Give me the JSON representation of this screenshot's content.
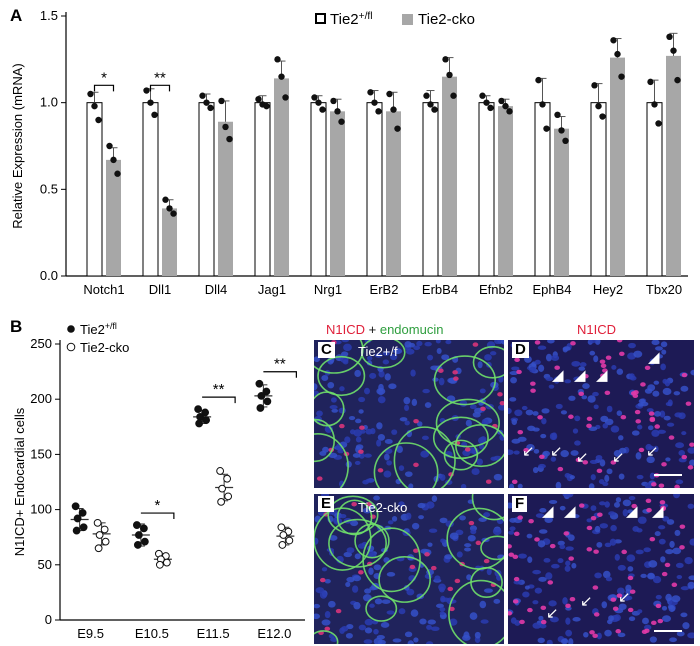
{
  "panelA": {
    "letter": "A",
    "ylabel": "Relative Expression (mRNA)",
    "legend": [
      "Tie2+/fl",
      "Tie2-cko"
    ],
    "ylim": [
      0,
      1.5
    ],
    "yticks": [
      "0.0",
      "0.5",
      "1.0",
      "1.5"
    ]
  },
  "panelB": {
    "letter": "B",
    "ylabel": "N1ICD+ Endocardial cells",
    "legend": [
      "Tie2+/fl",
      "Tie2-cko"
    ],
    "ylim": [
      0,
      250
    ],
    "yticks": [
      "0",
      "50",
      "100",
      "150",
      "200",
      "250"
    ]
  },
  "chart_data": [
    {
      "type": "bar",
      "ylabel": "Relative Expression (mRNA)",
      "ylim": [
        0,
        1.5
      ],
      "categories": [
        "Notch1",
        "Dll1",
        "Dll4",
        "Jag1",
        "Nrg1",
        "ErB2",
        "ErbB4",
        "Efnb2",
        "EphB4",
        "Hey2",
        "Tbx20"
      ],
      "series": [
        {
          "name": "Tie2+/fl",
          "values": [
            1.0,
            1.0,
            1.0,
            1.0,
            1.0,
            1.0,
            1.0,
            1.0,
            1.0,
            1.0,
            1.0
          ],
          "err": [
            0.06,
            0.08,
            0.05,
            0.04,
            0.04,
            0.07,
            0.07,
            0.04,
            0.14,
            0.11,
            0.13
          ],
          "points": [
            [
              1.05,
              0.98,
              0.9
            ],
            [
              1.07,
              1.0,
              0.93
            ],
            [
              1.04,
              1.0,
              0.97
            ],
            [
              1.02,
              0.99,
              0.98
            ],
            [
              1.03,
              1.0,
              0.96
            ],
            [
              1.06,
              1.0,
              0.95
            ],
            [
              1.04,
              0.99,
              0.96
            ],
            [
              1.04,
              1.0,
              0.97
            ],
            [
              1.13,
              0.99,
              0.85
            ],
            [
              1.1,
              0.98,
              0.92
            ],
            [
              1.12,
              0.99,
              0.88
            ]
          ]
        },
        {
          "name": "Tie2-cko",
          "values": [
            0.67,
            0.39,
            0.89,
            1.14,
            0.95,
            0.95,
            1.15,
            0.98,
            0.85,
            1.26,
            1.27
          ],
          "err": [
            0.07,
            0.05,
            0.12,
            0.1,
            0.07,
            0.11,
            0.11,
            0.04,
            0.07,
            0.11,
            0.13
          ],
          "points": [
            [
              0.75,
              0.67,
              0.59
            ],
            [
              0.44,
              0.39,
              0.36
            ],
            [
              1.01,
              0.86,
              0.79
            ],
            [
              1.25,
              1.15,
              1.03
            ],
            [
              1.01,
              0.95,
              0.89
            ],
            [
              1.05,
              0.96,
              0.85
            ],
            [
              1.25,
              1.16,
              1.04
            ],
            [
              1.01,
              0.98,
              0.95
            ],
            [
              0.93,
              0.84,
              0.78
            ],
            [
              1.36,
              1.28,
              1.15
            ],
            [
              1.38,
              1.3,
              1.13
            ]
          ]
        }
      ],
      "significance": [
        {
          "category": "Notch1",
          "label": "*"
        },
        {
          "category": "Dll1",
          "label": "**"
        }
      ]
    },
    {
      "type": "scatter",
      "ylabel": "N1ICD+ Endocardial cells",
      "ylim": [
        0,
        250
      ],
      "categories": [
        "E9.5",
        "E10.5",
        "E11.5",
        "E12.0"
      ],
      "series": [
        {
          "name": "Tie2+/fl",
          "mean": [
            91,
            77,
            184,
            203
          ],
          "sd": [
            10,
            10,
            6,
            10
          ],
          "points": [
            [
              103,
              97,
              92,
              84,
              81
            ],
            [
              86,
              83,
              77,
              71,
              68
            ],
            [
              191,
              188,
              184,
              181,
              178
            ],
            [
              214,
              207,
              203,
              198,
              192
            ]
          ]
        },
        {
          "name": "Tie2-cko",
          "mean": [
            78,
            55,
            120,
            76
          ],
          "sd": [
            10,
            5,
            12,
            8
          ],
          "points": [
            [
              88,
              82,
              77,
              71,
              65
            ],
            [
              60,
              58,
              55,
              52,
              50
            ],
            [
              135,
              128,
              119,
              112,
              107
            ],
            [
              84,
              80,
              77,
              72,
              68
            ]
          ]
        }
      ],
      "significance": [
        {
          "category": "E10.5",
          "label": "*"
        },
        {
          "category": "E11.5",
          "label": "**"
        },
        {
          "category": "E12.0",
          "label": "**"
        }
      ]
    }
  ],
  "micrographs": {
    "header_left": [
      "N1ICD",
      " + ",
      "endomucin"
    ],
    "header_right": "N1ICD",
    "colors": {
      "red": "#e0203a",
      "green": "#2e9e3e"
    },
    "panels": [
      {
        "letter": "C",
        "label": "Tie2+/f"
      },
      {
        "letter": "D",
        "label": ""
      },
      {
        "letter": "E",
        "label": "Tie2-cko"
      },
      {
        "letter": "F",
        "label": ""
      }
    ]
  }
}
